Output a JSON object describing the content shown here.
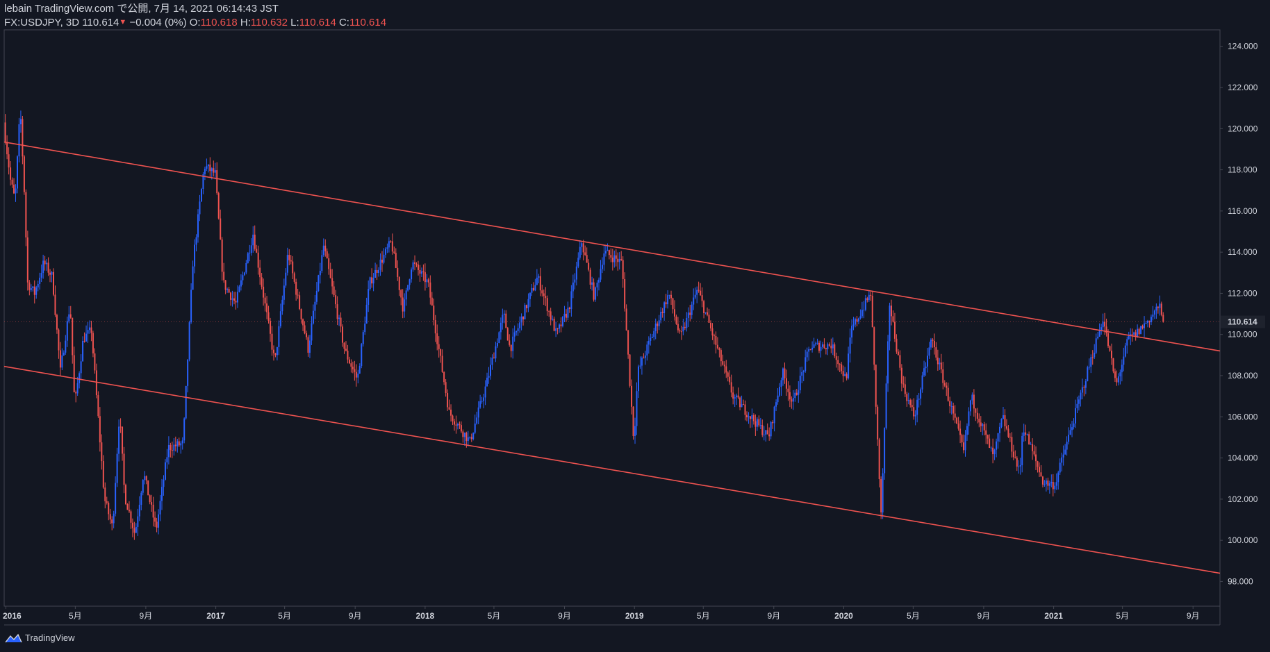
{
  "header": {
    "title": "lebain TradingView.com で公開, 7月 14, 2021 06:14:43 JST",
    "symbol": "FX:USDJPY, 3D",
    "price": "110.614",
    "change": "−0.004 (0%)",
    "o_label": "O:",
    "o_value": "110.618",
    "h_label": "H:",
    "h_value": "110.632",
    "l_label": "L:",
    "l_value": "110.614",
    "c_label": "C:",
    "c_value": "110.614"
  },
  "footer": {
    "brand": "TradingView"
  },
  "colors": {
    "background": "#131722",
    "up": "#2962ff",
    "down": "#ef5350",
    "trendline": "#ef5350",
    "axis_text": "#d1d4dc"
  },
  "chart_data": {
    "type": "candlestick",
    "symbol": "FX:USDJPY",
    "interval": "3D",
    "ylim": [
      96.8,
      124.8
    ],
    "y_ticks": [
      98,
      100,
      102,
      104,
      106,
      108,
      110,
      112,
      114,
      116,
      118,
      120,
      122,
      124
    ],
    "y_tick_labels": [
      "98.000",
      "100.000",
      "102.000",
      "104.000",
      "106.000",
      "108.000",
      "110.000",
      "112.000",
      "114.000",
      "116.000",
      "118.000",
      "120.000",
      "122.000",
      "124.000"
    ],
    "xlim": [
      "2015-12-29",
      "2021-10-18"
    ],
    "x_ticks": [
      {
        "date": "2016-01-01",
        "label": "2016",
        "bold": true
      },
      {
        "date": "2016-05-01",
        "label": "5月"
      },
      {
        "date": "2016-09-01",
        "label": "9月"
      },
      {
        "date": "2017-01-01",
        "label": "2017",
        "bold": true
      },
      {
        "date": "2017-05-01",
        "label": "5月"
      },
      {
        "date": "2017-09-01",
        "label": "9月"
      },
      {
        "date": "2018-01-01",
        "label": "2018",
        "bold": true
      },
      {
        "date": "2018-05-01",
        "label": "5月"
      },
      {
        "date": "2018-09-01",
        "label": "9月"
      },
      {
        "date": "2019-01-01",
        "label": "2019",
        "bold": true
      },
      {
        "date": "2019-05-01",
        "label": "5月"
      },
      {
        "date": "2019-09-01",
        "label": "9月"
      },
      {
        "date": "2020-01-01",
        "label": "2020",
        "bold": true
      },
      {
        "date": "2020-05-01",
        "label": "5月"
      },
      {
        "date": "2020-09-01",
        "label": "9月"
      },
      {
        "date": "2021-01-01",
        "label": "2021",
        "bold": true
      },
      {
        "date": "2021-05-01",
        "label": "5月"
      },
      {
        "date": "2021-09-01",
        "label": "9月"
      }
    ],
    "last_price": 110.614,
    "last_price_label": "110.614",
    "price_path": [
      [
        "2015-12-31",
        120.3
      ],
      [
        "2016-01-12",
        117.5
      ],
      [
        "2016-01-20",
        116.5
      ],
      [
        "2016-01-29",
        121.0
      ],
      [
        "2016-02-05",
        117.0
      ],
      [
        "2016-02-11",
        112.5
      ],
      [
        "2016-02-23",
        112.0
      ],
      [
        "2016-03-10",
        113.5
      ],
      [
        "2016-03-25",
        112.8
      ],
      [
        "2016-04-08",
        108.2
      ],
      [
        "2016-04-25",
        111.5
      ],
      [
        "2016-05-03",
        106.5
      ],
      [
        "2016-05-18",
        109.8
      ],
      [
        "2016-06-01",
        110.2
      ],
      [
        "2016-06-24",
        102.0
      ],
      [
        "2016-07-08",
        100.6
      ],
      [
        "2016-07-20",
        106.2
      ],
      [
        "2016-07-29",
        102.2
      ],
      [
        "2016-08-16",
        100.3
      ],
      [
        "2016-08-31",
        103.3
      ],
      [
        "2016-09-22",
        100.5
      ],
      [
        "2016-10-13",
        104.5
      ],
      [
        "2016-11-08",
        104.7
      ],
      [
        "2016-11-25",
        113.5
      ],
      [
        "2016-12-15",
        118.2
      ],
      [
        "2017-01-03",
        117.8
      ],
      [
        "2017-01-17",
        112.5
      ],
      [
        "2017-02-08",
        111.5
      ],
      [
        "2017-03-10",
        114.9
      ],
      [
        "2017-04-17",
        108.6
      ],
      [
        "2017-05-10",
        114.0
      ],
      [
        "2017-06-14",
        109.3
      ],
      [
        "2017-07-11",
        114.3
      ],
      [
        "2017-08-17",
        109.2
      ],
      [
        "2017-09-08",
        107.8
      ],
      [
        "2017-09-29",
        112.5
      ],
      [
        "2017-11-06",
        114.5
      ],
      [
        "2017-11-27",
        111.2
      ],
      [
        "2017-12-12",
        113.5
      ],
      [
        "2018-01-09",
        112.5
      ],
      [
        "2018-02-15",
        106.2
      ],
      [
        "2018-03-23",
        104.8
      ],
      [
        "2018-04-20",
        107.5
      ],
      [
        "2018-05-21",
        111.0
      ],
      [
        "2018-06-01",
        109.3
      ],
      [
        "2018-07-19",
        112.8
      ],
      [
        "2018-08-21",
        110.0
      ],
      [
        "2018-09-12",
        111.3
      ],
      [
        "2018-10-04",
        114.5
      ],
      [
        "2018-10-26",
        111.8
      ],
      [
        "2018-11-12",
        114.0
      ],
      [
        "2018-12-13",
        113.5
      ],
      [
        "2019-01-03",
        104.8
      ],
      [
        "2019-01-10",
        108.2
      ],
      [
        "2019-03-05",
        112.0
      ],
      [
        "2019-03-25",
        109.8
      ],
      [
        "2019-04-24",
        112.2
      ],
      [
        "2019-06-25",
        107.0
      ],
      [
        "2019-08-26",
        105.0
      ],
      [
        "2019-09-19",
        108.2
      ],
      [
        "2019-10-07",
        106.6
      ],
      [
        "2019-11-06",
        109.4
      ],
      [
        "2019-12-13",
        109.5
      ],
      [
        "2020-01-08",
        107.8
      ],
      [
        "2020-01-17",
        110.2
      ],
      [
        "2020-02-20",
        112.0
      ],
      [
        "2020-03-09",
        101.2
      ],
      [
        "2020-03-24",
        111.5
      ],
      [
        "2020-04-16",
        107.5
      ],
      [
        "2020-05-06",
        106.0
      ],
      [
        "2020-06-05",
        109.8
      ],
      [
        "2020-07-31",
        104.3
      ],
      [
        "2020-08-13",
        107.0
      ],
      [
        "2020-09-21",
        104.0
      ],
      [
        "2020-10-07",
        106.0
      ],
      [
        "2020-11-06",
        103.2
      ],
      [
        "2020-11-11",
        105.6
      ],
      [
        "2020-12-17",
        102.8
      ],
      [
        "2021-01-06",
        102.7
      ],
      [
        "2021-02-04",
        105.5
      ],
      [
        "2021-03-31",
        110.8
      ],
      [
        "2021-04-23",
        107.5
      ],
      [
        "2021-05-14",
        109.8
      ],
      [
        "2021-05-27",
        110.0
      ],
      [
        "2021-06-21",
        110.8
      ],
      [
        "2021-07-07",
        111.4
      ],
      [
        "2021-07-13",
        110.614
      ]
    ],
    "trendlines": [
      {
        "name": "upper-channel-line",
        "start": [
          "2015-12-29",
          119.35
        ],
        "end": [
          "2021-10-18",
          109.2
        ],
        "color": "#ef5350"
      },
      {
        "name": "lower-channel-line",
        "start": [
          "2015-12-29",
          108.45
        ],
        "end": [
          "2021-10-18",
          98.4
        ],
        "color": "#ef5350"
      }
    ],
    "grid": false,
    "legend": "none"
  }
}
